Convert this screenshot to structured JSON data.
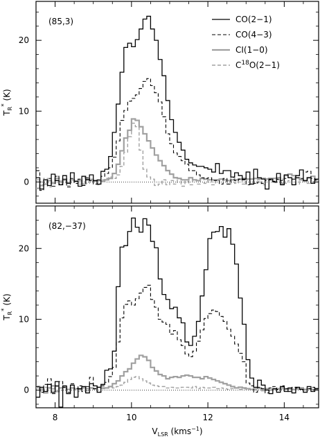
{
  "chart_data": {
    "type": "line",
    "xlabel_main": "V",
    "xlabel_sub": "LSR",
    "xlabel_units": "(kms",
    "xlabel_exp": "−1",
    "xlabel_close": ")",
    "ylabel_main": "T",
    "ylabel_sub": "R",
    "ylabel_sup": "*",
    "ylabel_units": "(K)",
    "xlim": [
      7.5,
      14.9
    ],
    "x_ticks": [
      "8",
      "10",
      "12",
      "14"
    ],
    "x_tick_values": [
      8,
      10,
      12,
      14
    ],
    "legend": {
      "placement": "top-right",
      "entries": [
        {
          "text": "CO(2−1)",
          "series": 0
        },
        {
          "text": "CO(4−3)",
          "series": 1
        },
        {
          "text": "CI(1−0)",
          "series": 2
        },
        {
          "text_pre": "C",
          "text_sup": "18",
          "text_post": "O(2−1)",
          "series": 3
        }
      ]
    },
    "series_styles": [
      {
        "color": "#000000",
        "dash": "none",
        "width": 1.3
      },
      {
        "color": "#000000",
        "dash": "5,3",
        "width": 1.1
      },
      {
        "color": "#a0a0a0",
        "dash": "none",
        "width": 2.2
      },
      {
        "color": "#a0a0a0",
        "dash": "5,3",
        "width": 1.4
      }
    ],
    "panels": [
      {
        "label": "(85,3)",
        "ylim": [
          -3.0,
          25.5
        ],
        "y_ticks": [
          "0",
          "10",
          "20"
        ],
        "y_tick_values": [
          0,
          10,
          20
        ],
        "series": [
          {
            "x0": 7.5,
            "dx": 0.1,
            "values": [
              0.6,
              -1.0,
              0.3,
              -0.5,
              1.1,
              0.2,
              -0.4,
              0.9,
              -0.2,
              1.3,
              0.1,
              -0.6,
              0.8,
              0.3,
              1.0,
              0.2,
              -0.3,
              1.5,
              1.8,
              3.6,
              7.0,
              11.0,
              15.5,
              19.0,
              19.6,
              19.1,
              20.1,
              21.6,
              23.0,
              23.4,
              21.6,
              20.0,
              17.3,
              15.0,
              11.5,
              8.8,
              7.0,
              5.6,
              4.5,
              3.2,
              2.7,
              2.4,
              2.2,
              2.2,
              2.0,
              1.8,
              1.4,
              2.6,
              1.2,
              1.6,
              1.6,
              0.7,
              1.3,
              0.9,
              0.4,
              1.4,
              -0.3,
              1.8,
              0.6,
              0.4,
              -1.0,
              0.4,
              0.0,
              1.2,
              -0.4,
              1.0,
              0.6,
              -0.4,
              0.9,
              1.7,
              0.2,
              0.6,
              -0.2,
              0.4
            ]
          },
          {
            "x0": 7.5,
            "dx": 0.1,
            "values": [
              1.6,
              -1.2,
              0.0,
              0.5,
              -0.6,
              0.8,
              -0.3,
              0.3,
              -0.7,
              0.5,
              -0.2,
              0.4,
              -0.5,
              0.6,
              0.2,
              -0.3,
              0.3,
              0.8,
              1.2,
              2.0,
              3.5,
              5.8,
              8.7,
              10.1,
              11.4,
              11.8,
              12.3,
              13.2,
              14.2,
              14.6,
              13.6,
              12.6,
              11.3,
              9.2,
              6.8,
              5.4,
              4.1,
              3.6,
              3.0,
              2.5,
              1.6,
              1.6,
              1.0,
              0.6,
              0.5,
              0.6,
              0.2,
              0.2,
              -0.3,
              0.5,
              -0.3,
              0.3,
              0.2,
              0.4,
              0.3,
              -0.4,
              -0.3,
              -0.2,
              0.0,
              -0.2,
              0.2,
              0.3,
              0.1,
              0.4,
              0.2,
              0.5,
              0.6,
              0.4,
              0.6,
              0.5,
              1.4,
              1.5,
              0.5,
              0.3
            ]
          },
          {
            "x0": 7.5,
            "dx": 0.1,
            "values": [
              -0.9,
              -0.5,
              -0.3,
              0.2,
              -0.2,
              0.5,
              0.1,
              0.4,
              -0.1,
              0.3,
              0.1,
              0.2,
              -0.3,
              0.4,
              0.2,
              0.1,
              0.2,
              0.1,
              0.3,
              0.5,
              1.2,
              2.5,
              4.4,
              6.2,
              7.3,
              8.9,
              8.7,
              7.8,
              6.8,
              5.8,
              4.8,
              3.8,
              3.0,
              2.3,
              1.6,
              1.1,
              0.6,
              0.5,
              0.3,
              0.3,
              0.6,
              0.3,
              0.2,
              0.5,
              0.4,
              0.3,
              0.3,
              0.3,
              0.4,
              0.3,
              0.2,
              0.3,
              0.3,
              0.4,
              0.5,
              0.4,
              0.4,
              0.5,
              0.5,
              0.5,
              0.4,
              0.5,
              0.5,
              0.6,
              -0.2,
              0.9,
              1.1,
              0.9,
              0.6,
              0.3,
              0.1,
              0.6,
              0.8,
              0.3
            ]
          },
          {
            "x0": 7.5,
            "dx": 0.1,
            "values": [
              0.3,
              -0.4,
              0.5,
              -0.7,
              0.2,
              0.8,
              -0.1,
              0.4,
              -0.5,
              0.3,
              0.2,
              -0.3,
              0.6,
              -0.2,
              0.4,
              0.1,
              -0.4,
              0.3,
              0.5,
              0.7,
              0.5,
              1.0,
              2.2,
              4.2,
              6.4,
              8.3,
              7.8,
              4.5,
              1.8,
              0.7,
              0.4,
              -0.5,
              -0.3,
              0.3,
              -0.4,
              0.2,
              -0.3,
              0.5,
              -0.6,
              0.1,
              -0.4,
              0.3,
              -0.3,
              0.5,
              -0.2,
              0.3,
              -0.4,
              0.2,
              0.4,
              0.1,
              -0.3,
              0.6,
              -0.2,
              0.3,
              -0.3,
              0.2,
              0.4,
              -0.2,
              0.3,
              -0.4,
              0.5,
              0.2,
              -0.1,
              0.3,
              0.4,
              -0.2,
              0.2,
              0.6,
              -0.3,
              0.4,
              0.1,
              -0.2,
              0.3,
              0.2
            ]
          }
        ]
      },
      {
        "label": "(82,−37)",
        "ylim": [
          -2.5,
          26.0
        ],
        "y_ticks": [
          "0",
          "10",
          "20"
        ],
        "y_tick_values": [
          0,
          10,
          20
        ],
        "series": [
          {
            "x0": 7.5,
            "dx": 0.1,
            "values": [
              -1.0,
              0.4,
              -0.2,
              0.8,
              -0.3,
              1.2,
              -2.4,
              0.6,
              -0.5,
              0.7,
              -1.0,
              0.2,
              0.5,
              -0.4,
              0.9,
              0.6,
              -0.3,
              0.8,
              2.8,
              3.0,
              5.5,
              14.6,
              20.2,
              20.4,
              22.4,
              24.3,
              23.0,
              22.3,
              24.2,
              23.3,
              21.0,
              20.1,
              15.7,
              13.5,
              12.8,
              11.5,
              11.7,
              10.2,
              9.5,
              6.8,
              6.3,
              7.6,
              9.7,
              13.3,
              17.0,
              21.4,
              22.3,
              22.4,
              23.1,
              21.6,
              22.8,
              20.6,
              17.8,
              13.0,
              9.3,
              4.3,
              1.7,
              0.4,
              1.4,
              0.7,
              0.0,
              -0.5,
              0.2,
              -0.3,
              0.5,
              -0.2,
              0.3,
              -0.4,
              0.4,
              0.1,
              -0.3,
              0.5,
              -0.2,
              0.2
            ]
          },
          {
            "x0": 7.5,
            "dx": 0.1,
            "values": [
              0.5,
              -0.3,
              0.8,
              1.6,
              -0.5,
              0.6,
              1.2,
              0.4,
              -0.3,
              0.9,
              0.2,
              0.6,
              -0.2,
              0.5,
              1.8,
              0.2,
              0.4,
              0.6,
              1.1,
              1.9,
              3.2,
              6.8,
              10.2,
              12.1,
              12.6,
              12.0,
              12.9,
              13.7,
              14.5,
              14.8,
              12.8,
              11.7,
              10.0,
              9.6,
              9.3,
              7.9,
              8.4,
              7.1,
              6.3,
              5.1,
              4.7,
              5.5,
              6.9,
              8.5,
              10.1,
              10.8,
              11.3,
              11.1,
              10.4,
              9.7,
              8.6,
              7.6,
              6.5,
              5.2,
              4.0,
              1.0,
              0.6,
              -0.3,
              0.4,
              0.2,
              -0.4,
              0.3,
              0.5,
              0.1,
              0.6,
              0.2,
              -0.2,
              0.4,
              0.3,
              0.1,
              -0.3,
              0.2,
              0.4,
              0.2
            ]
          },
          {
            "x0": 7.5,
            "dx": 0.1,
            "values": [
              0.5,
              0.2,
              -0.4,
              0.3,
              0.6,
              -0.2,
              0.3,
              0.4,
              0.1,
              0.3,
              0.2,
              0.1,
              0.3,
              0.2,
              0.3,
              0.2,
              0.4,
              0.3,
              0.3,
              0.5,
              0.9,
              1.3,
              2.0,
              2.6,
              3.0,
              3.8,
              4.4,
              4.9,
              4.7,
              4.2,
              3.2,
              2.7,
              2.2,
              2.0,
              1.6,
              1.8,
              1.9,
              1.8,
              2.0,
              2.1,
              2.0,
              1.8,
              1.8,
              1.6,
              1.9,
              1.7,
              1.5,
              1.3,
              1.1,
              0.9,
              0.7,
              0.5,
              0.3,
              0.4,
              0.3,
              0.2,
              0.1,
              0.2,
              0.3,
              0.1,
              0.2,
              0.0,
              0.1,
              0.2,
              0.3,
              0.1,
              0.2,
              0.1,
              0.2,
              0.3,
              0.1,
              0.2,
              0.1,
              0.2
            ]
          },
          {
            "x0": 7.5,
            "dx": 0.1,
            "values": [
              0.3,
              -0.2,
              0.4,
              -0.4,
              0.2,
              0.5,
              -0.1,
              0.3,
              -0.3,
              0.2,
              0.1,
              -0.2,
              0.4,
              -0.1,
              0.3,
              0.1,
              -0.3,
              0.2,
              0.3,
              0.4,
              0.3,
              0.5,
              0.7,
              1.1,
              1.5,
              1.8,
              1.9,
              1.6,
              1.3,
              1.0,
              0.7,
              0.6,
              0.5,
              0.5,
              0.3,
              0.4,
              0.3,
              0.3,
              0.4,
              0.4,
              0.3,
              0.5,
              0.2,
              0.4,
              0.3,
              0.3,
              0.4,
              0.2,
              0.3,
              0.2,
              0.1,
              0.2,
              0.3,
              0.1,
              0.2,
              0.1,
              0.1,
              0.0,
              0.2,
              -0.1,
              0.1,
              0.1,
              0.0,
              0.2,
              0.1,
              0.1,
              0.0,
              0.1,
              0.1,
              0.1,
              0.0,
              0.1,
              0.1,
              0.1
            ]
          }
        ]
      }
    ]
  }
}
